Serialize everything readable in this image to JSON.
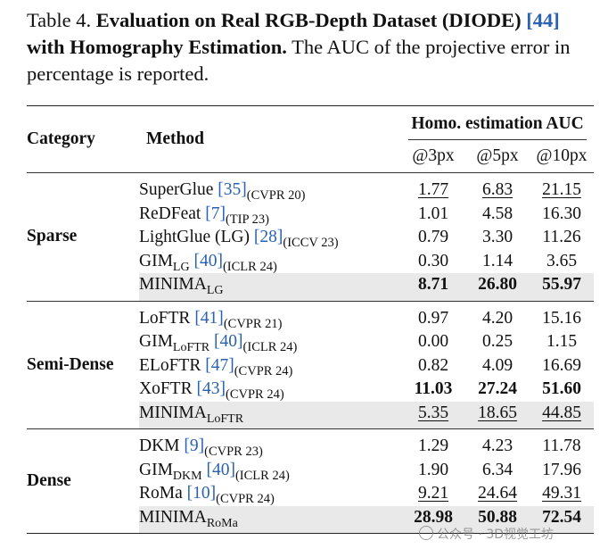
{
  "caption": {
    "label": "Table 4.",
    "title": "Evaluation on Real RGB-Depth Dataset (DIODE)",
    "ref": "[44]",
    "title2": "with Homography Estimation.",
    "rest": "The AUC of the projective error in percentage is reported."
  },
  "header": {
    "category": "Category",
    "method": "Method",
    "group": "Homo. estimation AUC",
    "cols": [
      "@3px",
      "@5px",
      "@10px"
    ]
  },
  "sections": [
    {
      "category": "Sparse",
      "rows": [
        {
          "name": "SuperGlue ",
          "sub": "",
          "ref": "[35]",
          "venue": "(CVPR 20)",
          "v": [
            "1.77",
            "6.83",
            "21.15"
          ]
        },
        {
          "name": "ReDFeat ",
          "sub": "",
          "ref": "[7]",
          "venue": "(TIP 23)",
          "v": [
            "1.01",
            "4.58",
            "16.30"
          ]
        },
        {
          "name": "LightGlue (LG) ",
          "sub": "",
          "ref": "[28]",
          "venue": "(ICCV 23)",
          "v": [
            "0.79",
            "3.30",
            "11.26"
          ]
        },
        {
          "name": "GIM",
          "sub": "LG",
          "ref": "[40]",
          "venue": "(ICLR 24)",
          "v": [
            "0.30",
            "1.14",
            "3.65"
          ]
        },
        {
          "name": "MINIMA",
          "sub": "LG",
          "ref": "",
          "venue": "",
          "v": [
            "8.71",
            "26.80",
            "55.97"
          ]
        }
      ]
    },
    {
      "category": "Semi-Dense",
      "rows": [
        {
          "name": "LoFTR ",
          "sub": "",
          "ref": "[41]",
          "venue": "(CVPR 21)",
          "v": [
            "0.97",
            "4.20",
            "15.16"
          ]
        },
        {
          "name": "GIM",
          "sub": "LoFTR",
          "ref": "[40]",
          "venue": "(ICLR 24)",
          "v": [
            "0.00",
            "0.25",
            "1.15"
          ]
        },
        {
          "name": "ELoFTR ",
          "sub": "",
          "ref": "[47]",
          "venue": "(CVPR 24)",
          "v": [
            "0.82",
            "4.09",
            "16.69"
          ]
        },
        {
          "name": "XoFTR ",
          "sub": "",
          "ref": "[43]",
          "venue": "(CVPR 24)",
          "v": [
            "11.03",
            "27.24",
            "51.60"
          ]
        },
        {
          "name": "MINIMA",
          "sub": "LoFTR",
          "ref": "",
          "venue": "",
          "v": [
            "5.35",
            "18.65",
            "44.85"
          ]
        }
      ]
    },
    {
      "category": "Dense",
      "rows": [
        {
          "name": "DKM ",
          "sub": "",
          "ref": "[9]",
          "venue": "(CVPR 23)",
          "v": [
            "1.29",
            "4.23",
            "11.78"
          ]
        },
        {
          "name": "GIM",
          "sub": "DKM",
          "ref": "[40]",
          "venue": "(ICLR 24)",
          "v": [
            "1.90",
            "6.34",
            "17.96"
          ]
        },
        {
          "name": "RoMa ",
          "sub": "",
          "ref": "[10]",
          "venue": "(CVPR 24)",
          "v": [
            "9.21",
            "24.64",
            "49.31"
          ]
        },
        {
          "name": "MINIMA",
          "sub": "RoMa",
          "ref": "",
          "venue": "",
          "v": [
            "28.98",
            "50.88",
            "72.54"
          ]
        }
      ]
    }
  ],
  "watermark": "公众号 · 3D视觉工坊"
}
